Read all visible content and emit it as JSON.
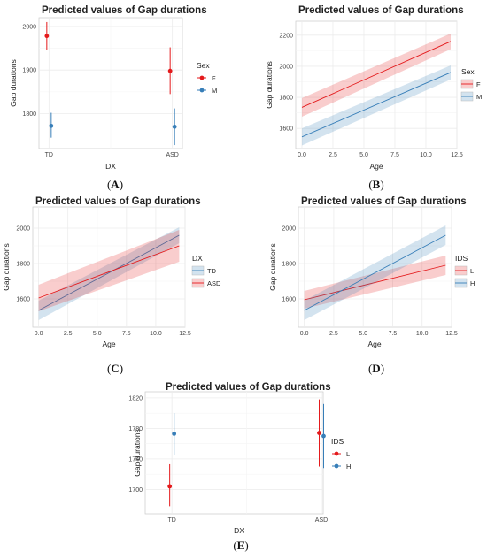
{
  "colors": {
    "red": "#E41A1C",
    "blue": "#377EB8",
    "grid": "#ececec",
    "frame": "#d0d0d0"
  },
  "panels": [
    {
      "id": "A",
      "label": "A",
      "title": "Predicted values of Gap durations",
      "xlabel": "DX",
      "ylabel": "Gap durations",
      "legend_title": "Sex"
    },
    {
      "id": "B",
      "label": "B",
      "title": "Predicted values of Gap durations",
      "xlabel": "Age",
      "ylabel": "Gap durations",
      "legend_title": "Sex"
    },
    {
      "id": "C",
      "label": "C",
      "title": "Predicted values of Gap durations",
      "xlabel": "Age",
      "ylabel": "Gap durations",
      "legend_title": "DX"
    },
    {
      "id": "D",
      "label": "D",
      "title": "Predicted values of Gap durations",
      "xlabel": "Age",
      "ylabel": "Gap durations",
      "legend_title": "IDS"
    },
    {
      "id": "E",
      "label": "E",
      "title": "Predicted values of Gap durations",
      "xlabel": "DX",
      "ylabel": "Gap durations",
      "legend_title": "IDS"
    }
  ],
  "chart_data": [
    {
      "panel": "A",
      "type": "scatter",
      "title": "Predicted values of Gap durations",
      "xlabel": "DX",
      "ylabel": "Gap durations",
      "categories": [
        "TD",
        "ASD"
      ],
      "ylim": [
        1720,
        2020
      ],
      "yticks": [
        1800,
        1900,
        2000
      ],
      "legend": {
        "title": "Sex",
        "position": "right"
      },
      "series": [
        {
          "name": "F",
          "color": "#E41A1C",
          "values": [
            1978,
            1898
          ],
          "ci_low": [
            1945,
            1845
          ],
          "ci_high": [
            2010,
            1952
          ]
        },
        {
          "name": "M",
          "color": "#377EB8",
          "values": [
            1772,
            1770
          ],
          "ci_low": [
            1745,
            1728
          ],
          "ci_high": [
            1802,
            1812
          ]
        }
      ]
    },
    {
      "panel": "B",
      "type": "line",
      "title": "Predicted values of Gap durations",
      "xlabel": "Age",
      "ylabel": "Gap durations",
      "xlim": [
        -0.5,
        12.5
      ],
      "ylim": [
        1470,
        2290
      ],
      "xticks": [
        0.0,
        2.5,
        5.0,
        7.5,
        10.0,
        12.5
      ],
      "yticks": [
        1600,
        1800,
        2000,
        2200
      ],
      "legend": {
        "title": "Sex",
        "position": "right"
      },
      "series": [
        {
          "name": "F",
          "color": "#E41A1C",
          "x": [
            0,
            12
          ],
          "y": [
            1735,
            2160
          ],
          "ci_low": [
            1675,
            2110
          ],
          "ci_high": [
            1795,
            2210
          ]
        },
        {
          "name": "M",
          "color": "#377EB8",
          "x": [
            0,
            12
          ],
          "y": [
            1545,
            1960
          ],
          "ci_low": [
            1490,
            1915
          ],
          "ci_high": [
            1600,
            2005
          ]
        }
      ]
    },
    {
      "panel": "C",
      "type": "line",
      "title": "Predicted values of Gap durations",
      "xlabel": "Age",
      "ylabel": "Gap durations",
      "xlim": [
        -0.5,
        12.5
      ],
      "ylim": [
        1440,
        2120
      ],
      "xticks": [
        0.0,
        2.5,
        5.0,
        7.5,
        10.0,
        12.5
      ],
      "yticks": [
        1600,
        1800,
        2000
      ],
      "legend": {
        "title": "DX",
        "position": "right"
      },
      "series": [
        {
          "name": "TD",
          "color": "#377EB8",
          "x": [
            0,
            12
          ],
          "y": [
            1535,
            1960
          ],
          "ci_low": [
            1480,
            1915
          ],
          "ci_high": [
            1590,
            2005
          ]
        },
        {
          "name": "ASD",
          "color": "#E41A1C",
          "x": [
            0,
            12
          ],
          "y": [
            1605,
            1900
          ],
          "ci_low": [
            1530,
            1810
          ],
          "ci_high": [
            1680,
            1990
          ]
        }
      ]
    },
    {
      "panel": "D",
      "type": "line",
      "title": "Predicted values of Gap durations",
      "xlabel": "Age",
      "ylabel": "Gap durations",
      "xlim": [
        -0.5,
        12.5
      ],
      "ylim": [
        1440,
        2120
      ],
      "xticks": [
        0.0,
        2.5,
        5.0,
        7.5,
        10.0,
        12.5
      ],
      "yticks": [
        1600,
        1800,
        2000
      ],
      "legend": {
        "title": "IDS",
        "position": "right"
      },
      "series": [
        {
          "name": "L",
          "color": "#E41A1C",
          "x": [
            0,
            12
          ],
          "y": [
            1595,
            1790
          ],
          "ci_low": [
            1545,
            1735
          ],
          "ci_high": [
            1645,
            1845
          ]
        },
        {
          "name": "H",
          "color": "#377EB8",
          "x": [
            0,
            12
          ],
          "y": [
            1535,
            1960
          ],
          "ci_low": [
            1480,
            1905
          ],
          "ci_high": [
            1590,
            2015
          ]
        }
      ]
    },
    {
      "panel": "E",
      "type": "scatter",
      "title": "Predicted values of Gap durations",
      "xlabel": "DX",
      "ylabel": "Gap durations",
      "categories": [
        "TD",
        "ASD"
      ],
      "ylim": [
        1668,
        1828
      ],
      "yticks": [
        1700,
        1740,
        1780,
        1820
      ],
      "legend": {
        "title": "IDS",
        "position": "right"
      },
      "series": [
        {
          "name": "L",
          "color": "#E41A1C",
          "values": [
            1704,
            1774
          ],
          "ci_low": [
            1678,
            1730
          ],
          "ci_high": [
            1733,
            1818
          ]
        },
        {
          "name": "H",
          "color": "#377EB8",
          "values": [
            1773,
            1770
          ],
          "ci_low": [
            1745,
            1728
          ],
          "ci_high": [
            1800,
            1812
          ]
        }
      ]
    }
  ]
}
